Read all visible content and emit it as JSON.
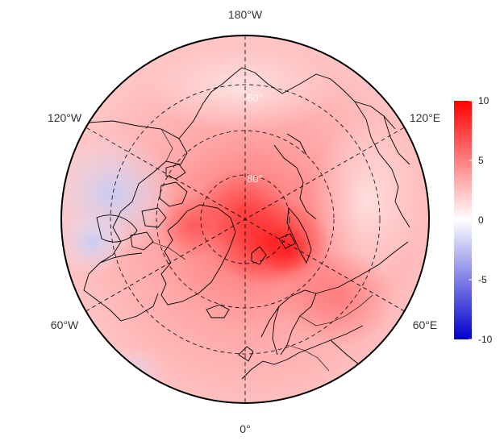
{
  "map": {
    "projection": "north-polar-stereographic",
    "longitude_labels": {
      "top": "180°W",
      "upper_left": "120°W",
      "upper_right": "120°E",
      "lower_left": "60°W",
      "lower_right": "60°E",
      "bottom": "0°"
    },
    "latitude_labels": {
      "outer": "60°",
      "inner": "80°"
    },
    "graticule_style": "dashed",
    "coastline_color": "#000000"
  },
  "colorbar": {
    "range": [
      -10,
      10
    ],
    "ticks": [
      "10",
      "5",
      "0",
      "-5",
      "-10"
    ],
    "colors": {
      "max": "#ff0000",
      "mid": "#ffffff",
      "min": "#0000cc"
    }
  }
}
